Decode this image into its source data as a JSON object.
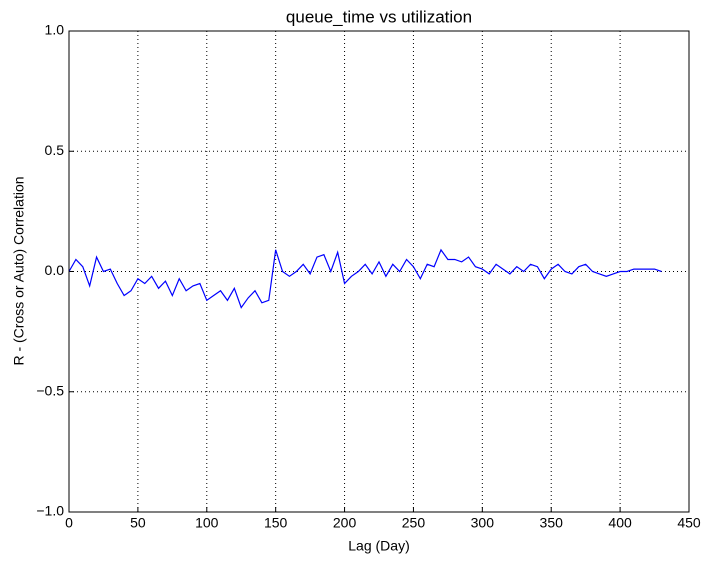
{
  "chart_data": {
    "type": "line",
    "title": "queue_time vs utilization",
    "x_label": "Lag (Day)",
    "y_label": "R - (Cross or Auto) Correlation",
    "xlim": [
      0,
      450
    ],
    "xticks": [
      0,
      50,
      100,
      150,
      200,
      250,
      300,
      350,
      400,
      450
    ],
    "ylim": [
      -1.0,
      1.0
    ],
    "yticks": [
      {
        "value": -1.0,
        "label": "−1.0"
      },
      {
        "value": -0.5,
        "label": "−0.5"
      },
      {
        "value": 0.0,
        "label": "0.0"
      },
      0.5,
      {
        "value": 1.0,
        "label": "1.0"
      }
    ],
    "grid": true,
    "x": [
      0,
      5,
      10,
      15,
      20,
      25,
      30,
      35,
      40,
      45,
      50,
      55,
      60,
      65,
      70,
      75,
      80,
      85,
      90,
      95,
      100,
      105,
      110,
      115,
      120,
      125,
      130,
      135,
      140,
      145,
      150,
      155,
      160,
      165,
      170,
      175,
      180,
      185,
      190,
      195,
      200,
      205,
      210,
      215,
      220,
      225,
      230,
      235,
      240,
      245,
      250,
      255,
      260,
      265,
      270,
      275,
      280,
      285,
      290,
      295,
      300,
      305,
      310,
      315,
      320,
      325,
      330,
      335,
      340,
      345,
      350,
      355,
      360,
      365,
      370,
      375,
      380,
      385,
      390,
      395,
      400,
      405,
      410,
      415,
      420,
      425,
      430
    ],
    "series": [
      {
        "color": "#0000ff",
        "values": [
          0.0,
          0.05,
          0.02,
          -0.06,
          0.06,
          0.0,
          0.01,
          -0.05,
          -0.1,
          -0.08,
          -0.03,
          -0.05,
          -0.02,
          -0.07,
          -0.04,
          -0.1,
          -0.03,
          -0.08,
          -0.06,
          -0.05,
          -0.12,
          -0.1,
          -0.08,
          -0.12,
          -0.07,
          -0.15,
          -0.11,
          -0.08,
          -0.13,
          -0.12,
          0.09,
          0.0,
          -0.02,
          0.0,
          0.03,
          -0.01,
          0.06,
          0.07,
          0.0,
          0.08,
          -0.05,
          -0.02,
          0.0,
          0.03,
          -0.01,
          0.04,
          -0.02,
          0.03,
          0.0,
          0.05,
          0.02,
          -0.03,
          0.03,
          0.02,
          0.09,
          0.05,
          0.05,
          0.04,
          0.06,
          0.02,
          0.01,
          -0.01,
          0.03,
          0.01,
          -0.01,
          0.02,
          0.0,
          0.03,
          0.02,
          -0.03,
          0.01,
          0.03,
          0.0,
          -0.01,
          0.02,
          0.03,
          0.0,
          -0.01,
          -0.02,
          -0.01,
          0.0,
          0.0,
          0.01,
          0.01,
          0.01,
          0.01,
          0.0
        ]
      }
    ]
  }
}
